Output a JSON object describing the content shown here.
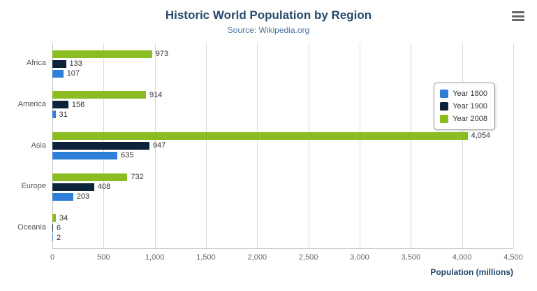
{
  "header": {
    "menu_icon": "hamburger-menu-icon"
  },
  "colors": {
    "grid": "#d8d8d8",
    "axis_line": "#c0c0c0",
    "title": "#274b6d",
    "subtitle": "#4d759e",
    "data_label": "#333333",
    "tick_label": "#666666",
    "legend_border": "#999999"
  },
  "chart_data": {
    "type": "bar",
    "orientation": "horizontal",
    "title": "Historic World Population by Region",
    "subtitle": "Source: Wikipedia.org",
    "categories": [
      "Africa",
      "America",
      "Asia",
      "Europe",
      "Oceania"
    ],
    "series": [
      {
        "name": "Year 1800",
        "color": "#2f7ed8",
        "values": [
          107,
          31,
          635,
          203,
          2
        ]
      },
      {
        "name": "Year 1900",
        "color": "#0d233a",
        "values": [
          133,
          156,
          947,
          408,
          6
        ]
      },
      {
        "name": "Year 2008",
        "color": "#8bbc21",
        "values": [
          973,
          914,
          4054,
          732,
          34
        ]
      }
    ],
    "series_display_order_top_to_bottom": [
      "Year 2008",
      "Year 1900",
      "Year 1800"
    ],
    "xlabel": "Population (millions)",
    "xlim": [
      0,
      4500
    ],
    "xticks": [
      0,
      500,
      1000,
      1500,
      2000,
      2500,
      3000,
      3500,
      4000,
      4500
    ],
    "grid": true,
    "legend_position": "right",
    "data_labels": true
  }
}
